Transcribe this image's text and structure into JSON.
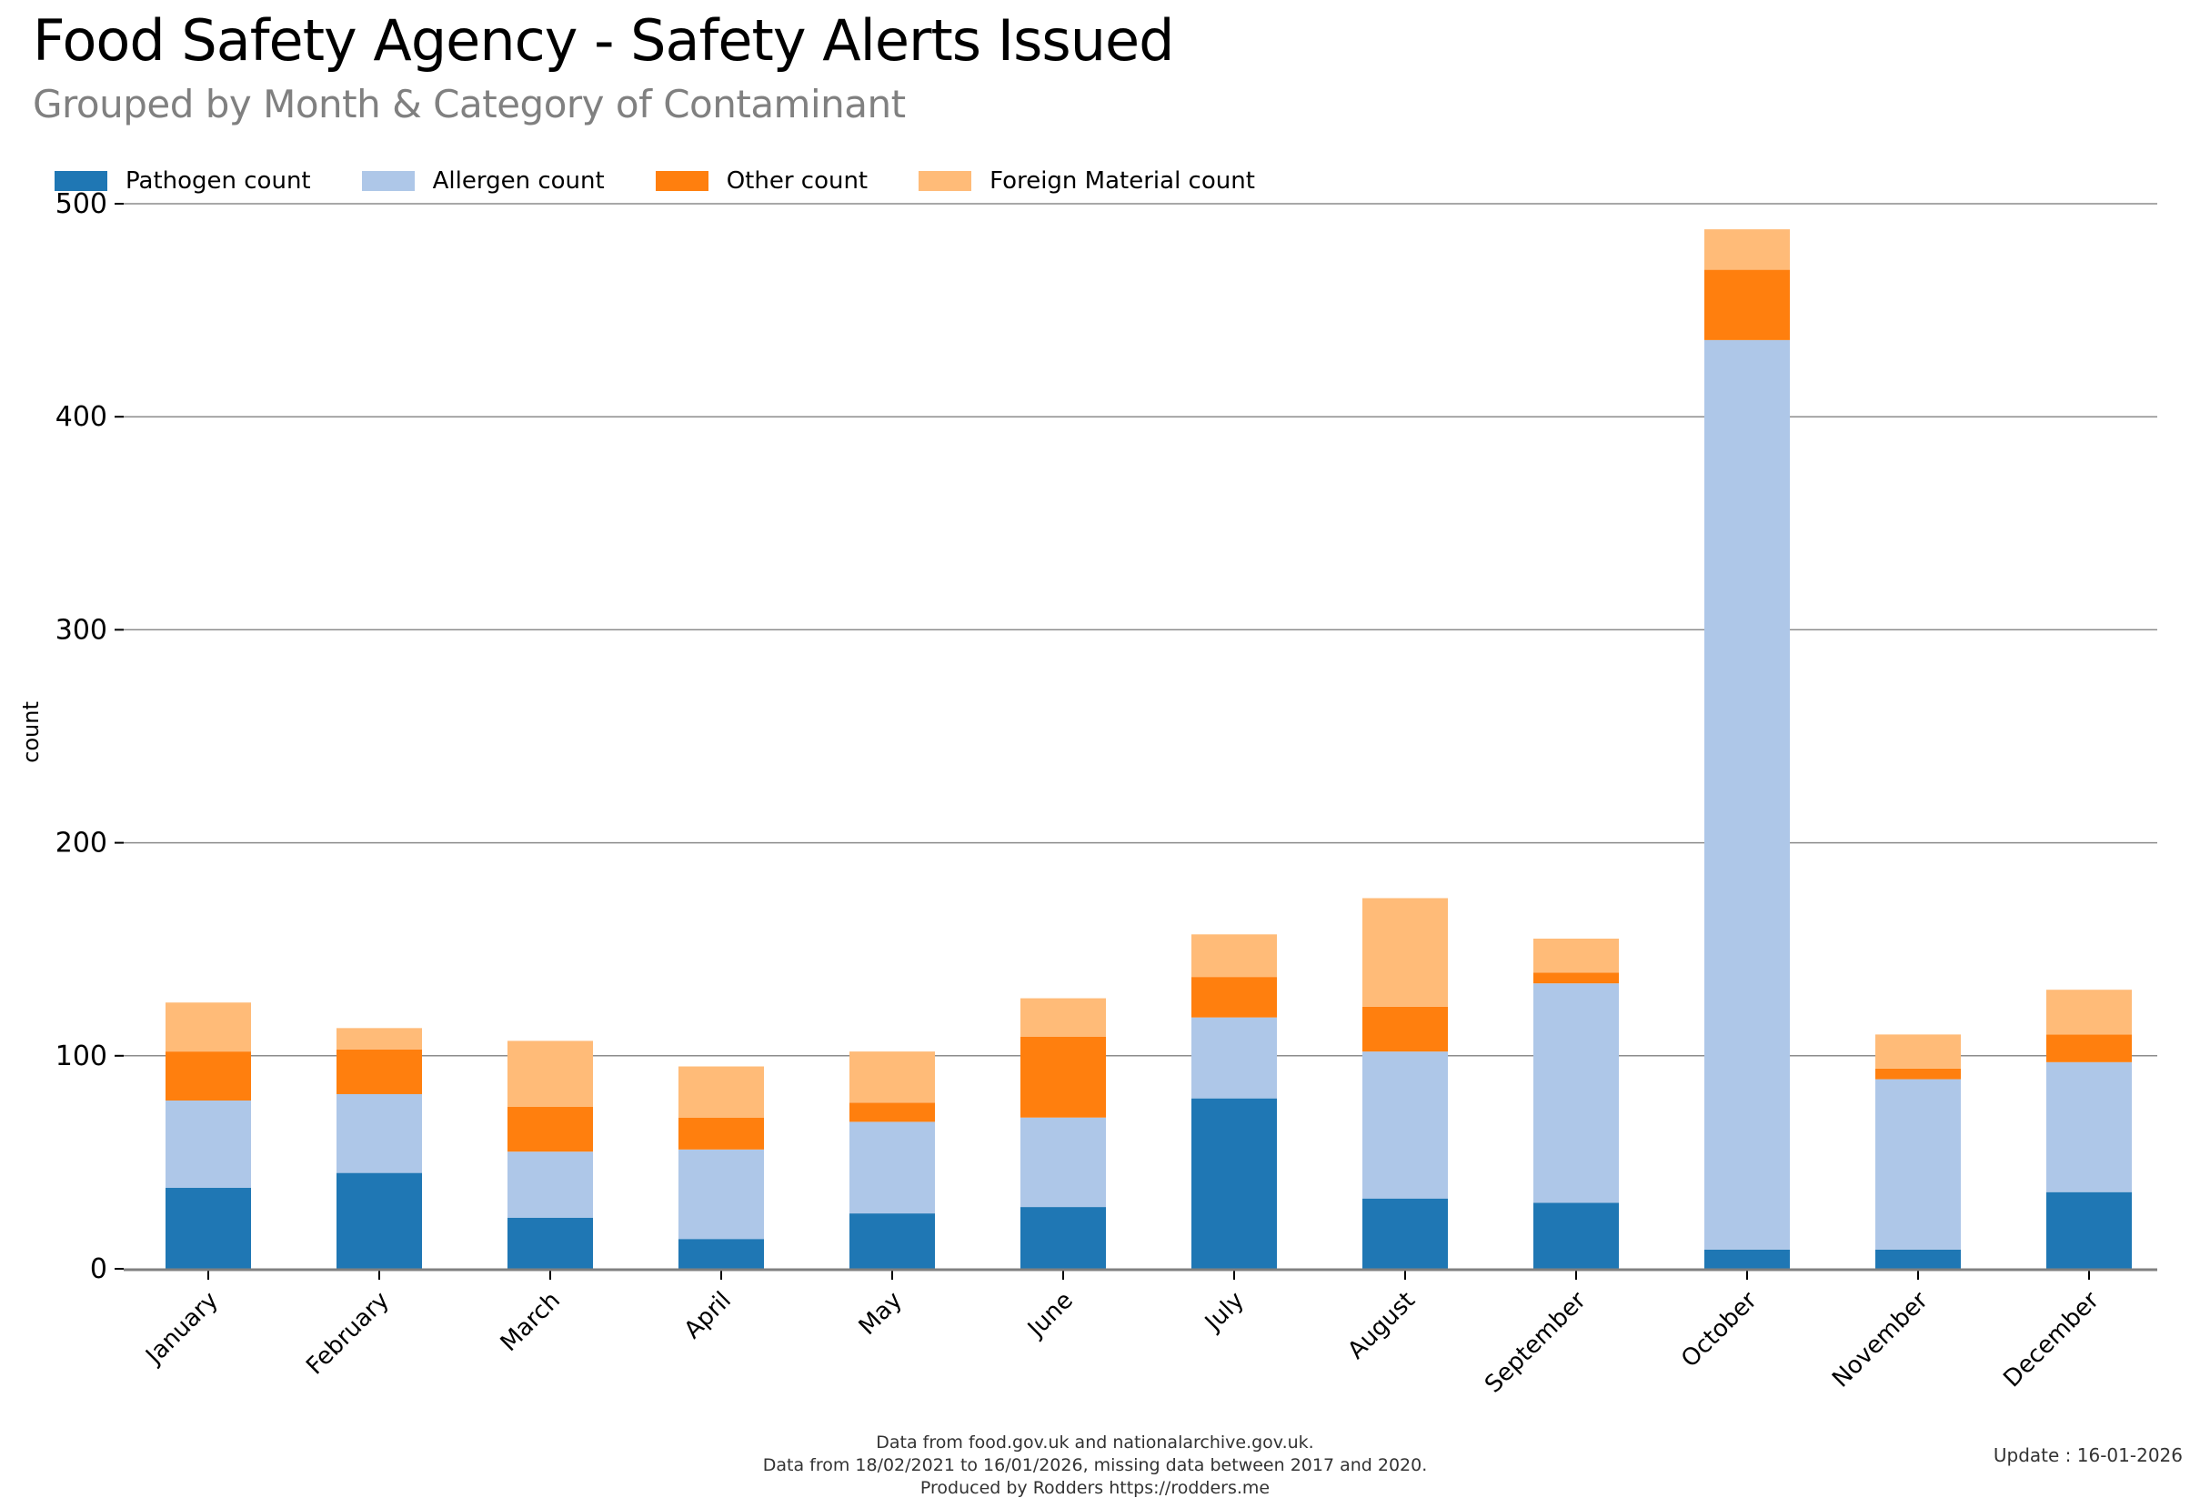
{
  "header": {
    "title": "Food Safety Agency - Safety Alerts Issued",
    "subtitle": "Grouped by Month & Category of Contaminant"
  },
  "footer": {
    "lines": [
      "Data from food.gov.uk and nationalarchive.gov.uk.",
      "Data from 18/02/2021 to 16/01/2026, missing data between 2017 and 2020.",
      "Produced by Rodders https://rodders.me"
    ],
    "update": "Update : 16-01-2026"
  },
  "chart_data": {
    "type": "bar",
    "stacked": true,
    "title": "Food Safety Agency - Safety Alerts Issued",
    "subtitle": "Grouped by Month & Category of Contaminant",
    "xlabel": "",
    "ylabel": "count",
    "ylim": [
      0,
      500
    ],
    "yticks": [
      0,
      100,
      200,
      300,
      400,
      500
    ],
    "grid": "horizontal",
    "legend_position": "top-left",
    "categories": [
      "January",
      "February",
      "March",
      "April",
      "May",
      "June",
      "July",
      "August",
      "September",
      "October",
      "November",
      "December"
    ],
    "series": [
      {
        "name": "Pathogen count",
        "color": "#1f77b4",
        "values": [
          38,
          45,
          24,
          14,
          26,
          29,
          80,
          33,
          31,
          9,
          9,
          36
        ]
      },
      {
        "name": "Allergen count",
        "color": "#aec7e8",
        "values": [
          41,
          37,
          31,
          42,
          43,
          42,
          38,
          69,
          103,
          427,
          80,
          61
        ]
      },
      {
        "name": "Other count",
        "color": "#ff7f0e",
        "values": [
          23,
          21,
          21,
          15,
          9,
          38,
          19,
          21,
          5,
          33,
          5,
          13
        ]
      },
      {
        "name": "Foreign Material count",
        "color": "#ffbb78",
        "values": [
          23,
          10,
          31,
          24,
          24,
          18,
          20,
          51,
          16,
          19,
          16,
          21
        ]
      }
    ]
  }
}
